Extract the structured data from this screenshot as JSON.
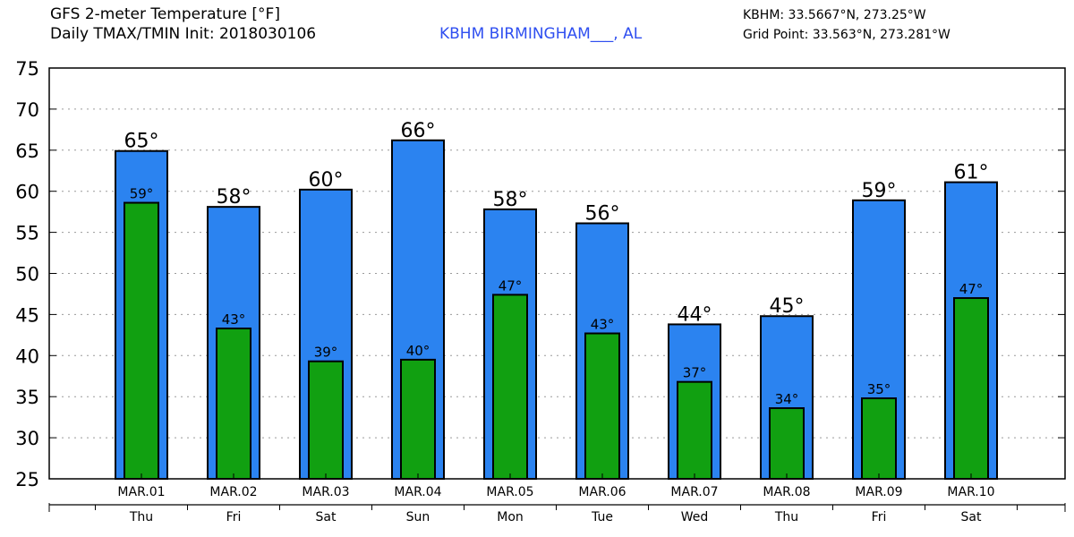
{
  "header": {
    "title": "GFS 2-meter Temperature [°F]",
    "subtitle": "Daily TMAX/TMIN Init: 2018030106",
    "station": "KBHM BIRMINGHAM___, AL",
    "station_coords": "KBHM: 33.5667°N, 273.25°W",
    "grid_point": "Grid Point: 33.563°N, 273.281°W"
  },
  "colors": {
    "tmax_bar": "#2b83f0",
    "tmin_bar": "#11a011",
    "station_text": "#2f4ff0",
    "gridline": "#9a9a9a"
  },
  "chart_data": {
    "type": "bar",
    "title": "GFS 2-meter Temperature [°F]",
    "categories": [
      "MAR.01",
      "MAR.02",
      "MAR.03",
      "MAR.04",
      "MAR.05",
      "MAR.06",
      "MAR.07",
      "MAR.08",
      "MAR.09",
      "MAR.10"
    ],
    "weekdays": [
      "Thu",
      "Fri",
      "Sat",
      "Sun",
      "Mon",
      "Tue",
      "Wed",
      "Thu",
      "Fri",
      "Sat"
    ],
    "series": [
      {
        "name": "TMAX",
        "values": [
          65,
          58,
          60,
          66,
          58,
          56,
          44,
          45,
          59,
          61
        ],
        "labels": [
          "65°",
          "58°",
          "60°",
          "66°",
          "58°",
          "56°",
          "44°",
          "45°",
          "59°",
          "61°"
        ]
      },
      {
        "name": "TMIN",
        "values": [
          59,
          43,
          39,
          40,
          47,
          43,
          37,
          34,
          35,
          47
        ],
        "labels": [
          "59°",
          "43°",
          "39°",
          "40°",
          "47°",
          "43°",
          "37°",
          "34°",
          "35°",
          "47°"
        ]
      }
    ],
    "bar_values_exact": {
      "tmax": [
        64.9,
        58.1,
        60.2,
        66.2,
        57.8,
        56.1,
        43.8,
        44.8,
        58.9,
        61.1
      ],
      "tmin": [
        58.6,
        43.3,
        39.3,
        39.5,
        47.4,
        42.7,
        36.8,
        33.6,
        34.8,
        47.0
      ]
    },
    "ylim": [
      25,
      75
    ],
    "yticks": [
      "25",
      "30",
      "35",
      "40",
      "45",
      "50",
      "55",
      "60",
      "65",
      "70",
      "75"
    ],
    "grid": true,
    "xlabel": "",
    "ylabel": ""
  }
}
